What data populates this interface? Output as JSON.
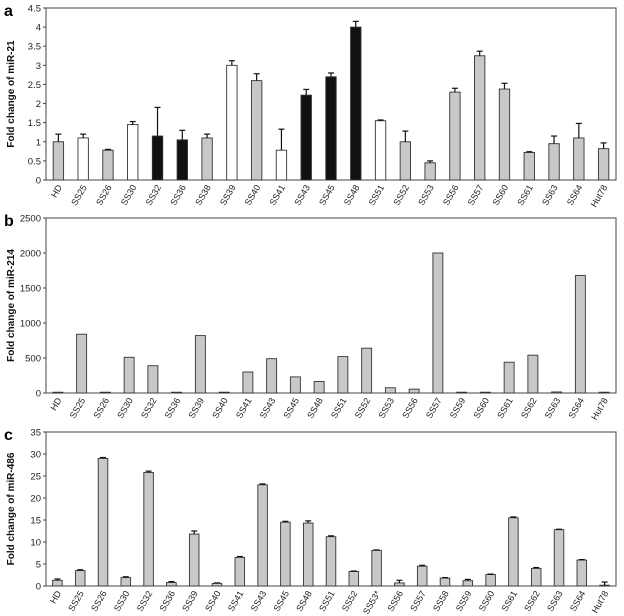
{
  "chart_data": [
    {
      "type": "bar",
      "panel_label": "a",
      "ylabel": "Fold change of miR-21",
      "ylim": [
        0,
        4.5
      ],
      "yticks": [
        "0",
        "0.5",
        "1",
        "1.5",
        "2",
        "2.5",
        "3",
        "3.5",
        "4",
        "4.5"
      ],
      "categories": [
        "HD",
        "SS25",
        "SS26",
        "SS30",
        "SS32",
        "SS36",
        "SS38",
        "SS39",
        "SS40",
        "SS41",
        "SS43",
        "SS45",
        "SS48",
        "SS51",
        "SS52",
        "SS53",
        "SS56",
        "SS57",
        "SS60",
        "SS61",
        "SS63",
        "SS64",
        "Hut78"
      ],
      "values": [
        1.0,
        1.1,
        0.78,
        1.45,
        1.15,
        1.05,
        1.1,
        3.0,
        2.6,
        0.78,
        2.22,
        2.7,
        4.0,
        1.55,
        1.0,
        0.45,
        2.3,
        3.25,
        2.38,
        0.72,
        0.95,
        1.1,
        0.82
      ],
      "errors": [
        0.2,
        0.1,
        0.02,
        0.08,
        0.75,
        0.25,
        0.1,
        0.12,
        0.18,
        0.55,
        0.15,
        0.1,
        0.15,
        0.02,
        0.28,
        0.05,
        0.1,
        0.12,
        0.15,
        0.02,
        0.2,
        0.38,
        0.15
      ],
      "fills": [
        "gray",
        "white",
        "gray",
        "white",
        "black",
        "black",
        "gray",
        "white",
        "gray",
        "white",
        "black",
        "black",
        "black",
        "white",
        "gray",
        "gray",
        "gray",
        "gray",
        "gray",
        "gray",
        "gray",
        "gray",
        "gray"
      ],
      "grid": false
    },
    {
      "type": "bar",
      "panel_label": "b",
      "ylabel": "Fold change of miR-214",
      "ylim": [
        0,
        2500
      ],
      "yticks": [
        "0",
        "500",
        "1000",
        "1500",
        "2000",
        "2500"
      ],
      "categories": [
        "HD",
        "SS25",
        "SS26",
        "SS30",
        "SS32",
        "SS36",
        "SS39",
        "SS40",
        "SS41",
        "SS43",
        "SS45",
        "SS48",
        "SS51",
        "SS52",
        "SS53",
        "SS56",
        "SS57",
        "SS59",
        "SS60",
        "SS61",
        "SS62",
        "SS63",
        "SS64",
        "Hut78"
      ],
      "values": [
        2,
        840,
        3,
        510,
        390,
        5,
        820,
        3,
        300,
        490,
        230,
        165,
        520,
        640,
        75,
        55,
        2000,
        3,
        2,
        440,
        540,
        15,
        1680,
        3
      ],
      "errors": [
        0,
        0,
        0,
        0,
        0,
        0,
        0,
        0,
        0,
        0,
        0,
        0,
        0,
        0,
        0,
        0,
        0,
        0,
        0,
        0,
        0,
        0,
        0,
        0
      ],
      "fills": [
        "gray",
        "gray",
        "gray",
        "gray",
        "gray",
        "gray",
        "gray",
        "gray",
        "gray",
        "gray",
        "gray",
        "gray",
        "gray",
        "gray",
        "gray",
        "gray",
        "gray",
        "gray",
        "gray",
        "gray",
        "gray",
        "gray",
        "gray",
        "gray"
      ],
      "grid": false
    },
    {
      "type": "bar",
      "panel_label": "c",
      "ylabel": "Fold change of miR-486",
      "ylim": [
        0,
        35
      ],
      "yticks": [
        "0",
        "5",
        "10",
        "15",
        "20",
        "25",
        "30",
        "35"
      ],
      "categories": [
        "HD",
        "SS25",
        "SS26",
        "SS30",
        "SS32",
        "SS36",
        "SS39",
        "SS40",
        "SS41",
        "SS43",
        "SS45",
        "SS48",
        "SS51",
        "SS52",
        "SS53*",
        "SS56",
        "SS57",
        "SS58",
        "SS59",
        "SS60",
        "SS61",
        "SS62",
        "SS63",
        "SS64",
        "Hut78"
      ],
      "values": [
        1.3,
        3.5,
        29.0,
        1.9,
        25.8,
        0.8,
        11.8,
        0.6,
        6.5,
        23.0,
        14.5,
        14.3,
        11.2,
        3.3,
        8.1,
        0.7,
        4.5,
        1.8,
        1.2,
        2.6,
        15.5,
        4.0,
        12.8,
        5.9,
        0.1
      ],
      "errors": [
        0.3,
        0.2,
        0.2,
        0.2,
        0.3,
        0.2,
        0.7,
        0.1,
        0.2,
        0.2,
        0.2,
        0.5,
        0.2,
        0.1,
        0.1,
        0.6,
        0.2,
        0.1,
        0.3,
        0.1,
        0.2,
        0.2,
        0.1,
        0.1,
        0.8
      ],
      "fills": [
        "gray",
        "gray",
        "gray",
        "gray",
        "gray",
        "gray",
        "gray",
        "gray",
        "gray",
        "gray",
        "gray",
        "gray",
        "gray",
        "gray",
        "gray",
        "gray",
        "gray",
        "gray",
        "gray",
        "gray",
        "gray",
        "gray",
        "gray",
        "gray",
        "gray"
      ],
      "grid": false
    }
  ],
  "colors": {
    "gray": "#c8c8c8",
    "white": "#ffffff",
    "black": "#111111",
    "stroke": "#333333"
  }
}
